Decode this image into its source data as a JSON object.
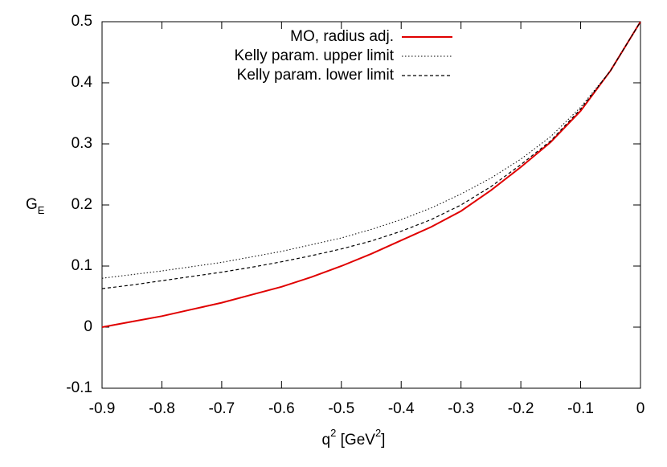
{
  "chart_data": {
    "type": "line",
    "xlabel": [
      "q",
      "2",
      " [GeV",
      "2",
      "]"
    ],
    "ylabel": [
      "G",
      "E"
    ],
    "x": [
      -0.9,
      -0.85,
      -0.8,
      -0.75,
      -0.7,
      -0.65,
      -0.6,
      -0.55,
      -0.5,
      -0.45,
      -0.4,
      -0.35,
      -0.3,
      -0.25,
      -0.2,
      -0.15,
      -0.1,
      -0.05,
      0
    ],
    "series": [
      {
        "name": "MO, radius adj.",
        "color": "#e00000",
        "width": 2,
        "dash": "none",
        "values": [
          0.0,
          0.009,
          0.018,
          0.029,
          0.04,
          0.053,
          0.066,
          0.082,
          0.1,
          0.12,
          0.142,
          0.164,
          0.19,
          0.224,
          0.262,
          0.303,
          0.354,
          0.42,
          0.5
        ]
      },
      {
        "name": "Kelly param. upper limit",
        "color": "#000000",
        "width": 1,
        "dash": "1.5 2.5",
        "values": [
          0.08,
          0.086,
          0.092,
          0.099,
          0.106,
          0.115,
          0.124,
          0.135,
          0.146,
          0.16,
          0.176,
          0.195,
          0.218,
          0.244,
          0.275,
          0.312,
          0.36,
          0.42,
          0.5
        ]
      },
      {
        "name": "Kelly param. lower limit",
        "color": "#000000",
        "width": 1.2,
        "dash": "4 3",
        "values": [
          0.063,
          0.069,
          0.076,
          0.083,
          0.09,
          0.098,
          0.107,
          0.117,
          0.128,
          0.141,
          0.157,
          0.176,
          0.2,
          0.23,
          0.266,
          0.305,
          0.357,
          0.42,
          0.5
        ]
      }
    ],
    "xlim": [
      -0.9,
      0
    ],
    "ylim": [
      -0.1,
      0.5
    ],
    "xticks": [
      -0.9,
      -0.8,
      -0.7,
      -0.6,
      -0.5,
      -0.4,
      -0.3,
      -0.2,
      -0.1,
      0
    ],
    "yticks": [
      -0.1,
      0,
      0.1,
      0.2,
      0.3,
      0.4,
      0.5
    ],
    "legend": "top-right",
    "grid": false
  }
}
